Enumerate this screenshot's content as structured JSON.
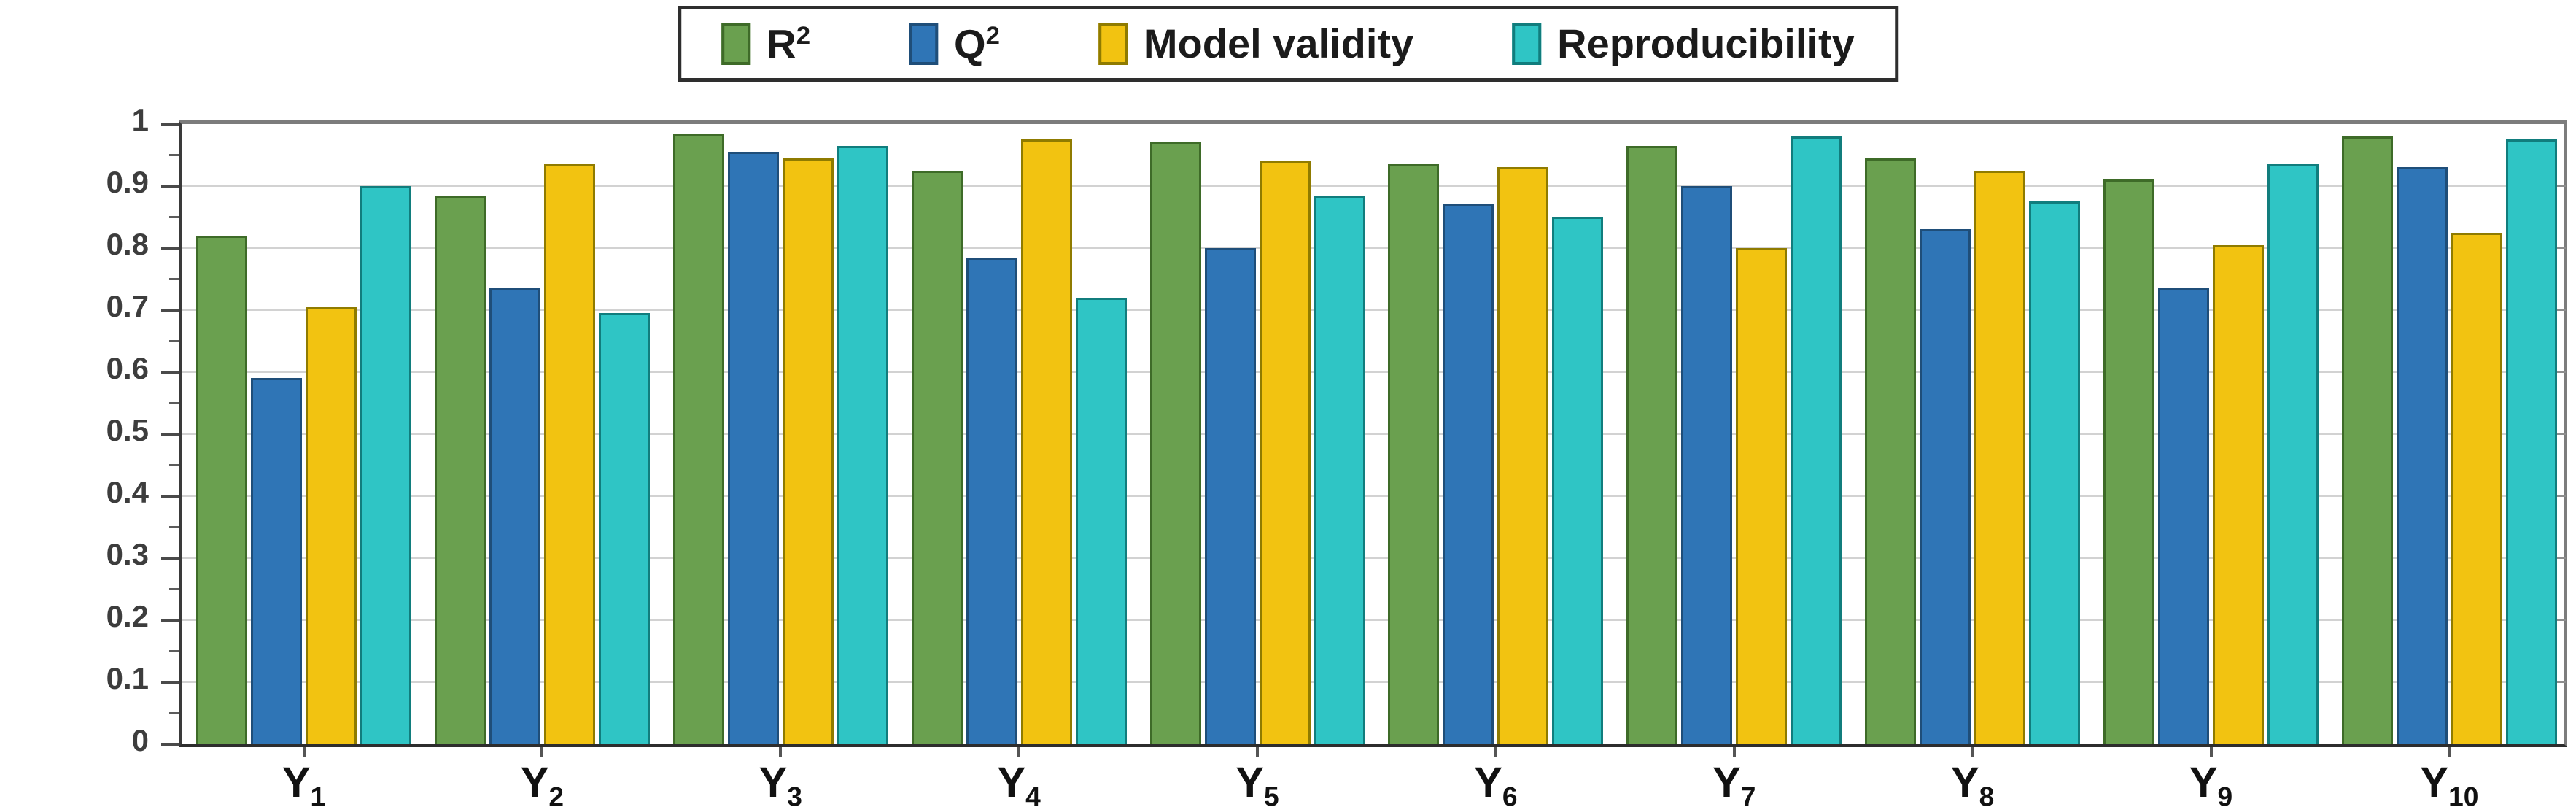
{
  "figure": {
    "background": "#ffffff",
    "gridline_color": "#d2d2d2"
  },
  "chart_data": {
    "type": "bar",
    "title": "",
    "xlabel": "",
    "ylabel": "",
    "ylim": [
      0,
      1
    ],
    "grid": true,
    "legend_position": "top-center",
    "y_tick_labels": [
      "1",
      "0.9",
      "0.8",
      "0.7",
      "0.6",
      "0.5",
      "0.4",
      "0.3",
      "0.2",
      "0.1",
      "0"
    ],
    "y_major_step": 0.1,
    "y_minor_step": 0.05,
    "categories": [
      {
        "base": "Y",
        "sub": "1"
      },
      {
        "base": "Y",
        "sub": "2"
      },
      {
        "base": "Y",
        "sub": "3"
      },
      {
        "base": "Y",
        "sub": "4"
      },
      {
        "base": "Y",
        "sub": "5"
      },
      {
        "base": "Y",
        "sub": "6"
      },
      {
        "base": "Y",
        "sub": "7"
      },
      {
        "base": "Y",
        "sub": "8"
      },
      {
        "base": "Y",
        "sub": "9"
      },
      {
        "base": "Y",
        "sub": "10"
      }
    ],
    "series": [
      {
        "name": "R2",
        "label_base": "R",
        "label_sup": "2",
        "fill": "#6aa04f",
        "stroke": "#3e6b28",
        "values": [
          0.82,
          0.885,
          0.985,
          0.925,
          0.97,
          0.935,
          0.965,
          0.945,
          0.91,
          0.98
        ]
      },
      {
        "name": "Q2",
        "label_base": "Q",
        "label_sup": "2",
        "fill": "#2f75b6",
        "stroke": "#1f4e79",
        "values": [
          0.59,
          0.735,
          0.955,
          0.785,
          0.8,
          0.87,
          0.9,
          0.83,
          0.735,
          0.93
        ]
      },
      {
        "name": "Model validity",
        "label_base": "Model validity",
        "label_sup": "",
        "fill": "#f2c311",
        "stroke": "#8f7b00",
        "values": [
          0.705,
          0.935,
          0.945,
          0.975,
          0.94,
          0.93,
          0.8,
          0.925,
          0.805,
          0.825
        ]
      },
      {
        "name": "Reproducibility",
        "label_base": "Reproducibility",
        "label_sup": "",
        "fill": "#2fc5c5",
        "stroke": "#117d7d",
        "values": [
          0.9,
          0.695,
          0.965,
          0.72,
          0.885,
          0.85,
          0.98,
          0.875,
          0.935,
          0.975
        ]
      }
    ]
  }
}
